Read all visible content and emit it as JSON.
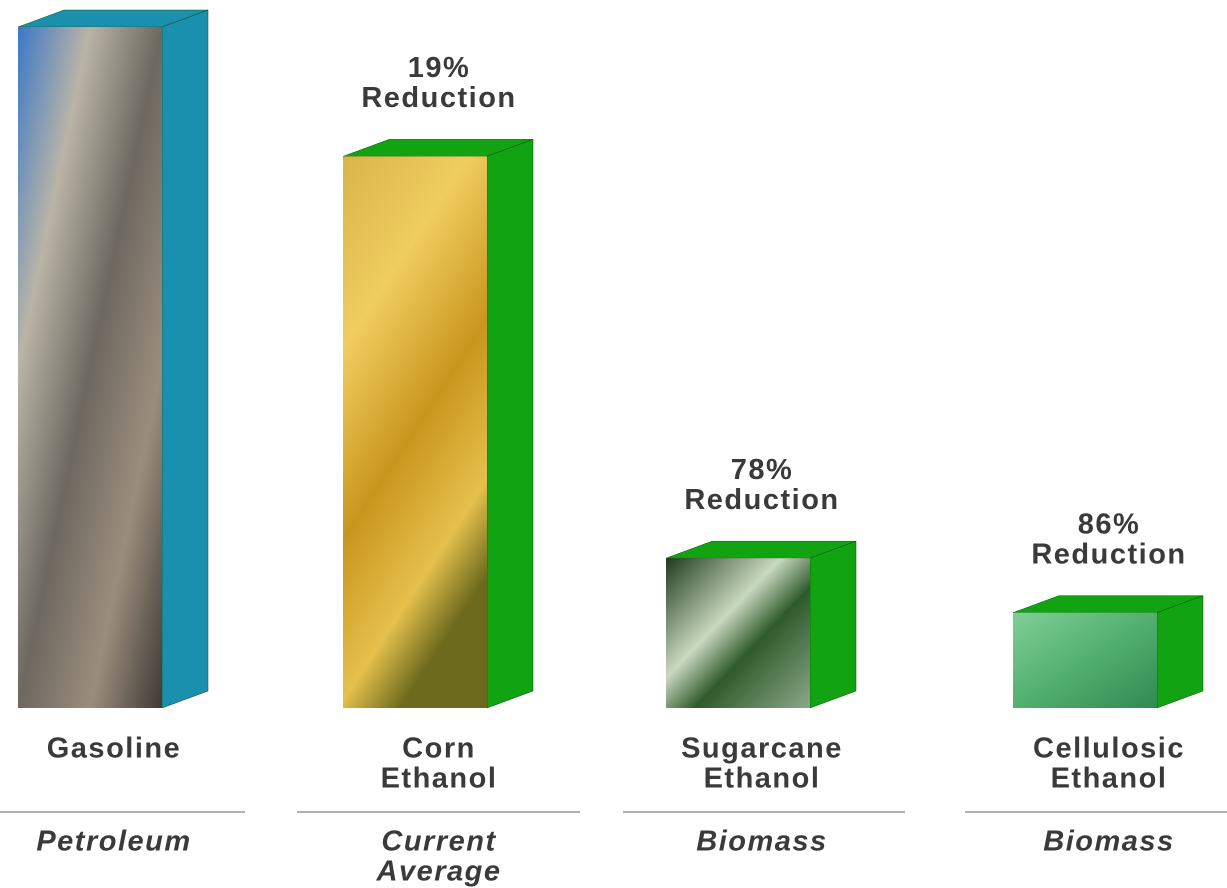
{
  "chart_data": {
    "type": "bar3d",
    "categories": [
      [
        "Gasoline"
      ],
      [
        "Corn",
        "Ethanol"
      ],
      [
        "Sugarcane",
        "Ethanol"
      ],
      [
        "Cellulosic",
        "Ethanol"
      ]
    ],
    "subcategories": [
      [
        "Petroleum"
      ],
      [
        "Current",
        "Average"
      ],
      [
        "Biomass"
      ],
      [
        "Biomass"
      ]
    ],
    "values": [
      100,
      81,
      22,
      14
    ],
    "annotations": [
      null,
      [
        "19%",
        "Reduction"
      ],
      [
        "78%",
        "Reduction"
      ],
      [
        "86%",
        "Reduction"
      ]
    ],
    "colors": [
      "#1b8fae",
      "#12a312",
      "#12a312",
      "#12a312"
    ],
    "ylim": [
      0,
      100
    ]
  }
}
